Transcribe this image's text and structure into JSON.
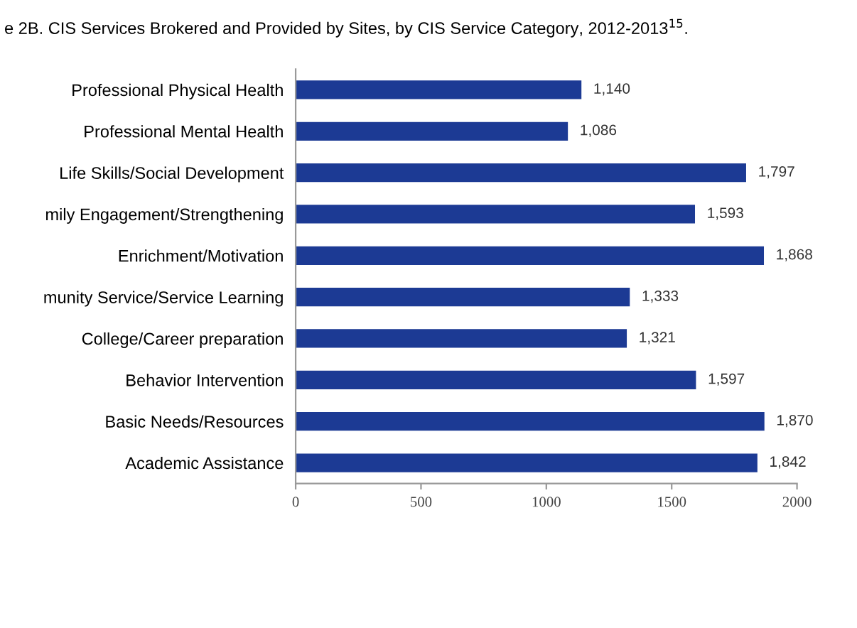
{
  "chart_data": {
    "type": "bar",
    "orientation": "horizontal",
    "title": "e 2B. CIS Services Brokered and Provided by Sites, by CIS Service Category, 2012-2013$^{15}$.",
    "categories": [
      "Professional Physical Health",
      "Professional Mental Health",
      "Life Skills/Social Development",
      "mily Engagement/Strengthening",
      "Enrichment/Motivation",
      "munity Service/Service Learning",
      "College/Career preparation",
      "Behavior Intervention",
      "Basic Needs/Resources",
      "Academic Assistance"
    ],
    "values": [
      1140,
      1086,
      1797,
      1593,
      1868,
      1333,
      1321,
      1597,
      1870,
      1842
    ],
    "value_labels": [
      "1,140",
      "1,086",
      "1,797",
      "1,593",
      "1,868",
      "1,333",
      "1,321",
      "1,597",
      "1,870",
      "1,842"
    ],
    "color": "#1c3a94",
    "xlim": [
      0,
      2000
    ],
    "xticks": [
      0,
      500,
      1000,
      1500,
      2000
    ],
    "grid": false,
    "legend": false
  }
}
